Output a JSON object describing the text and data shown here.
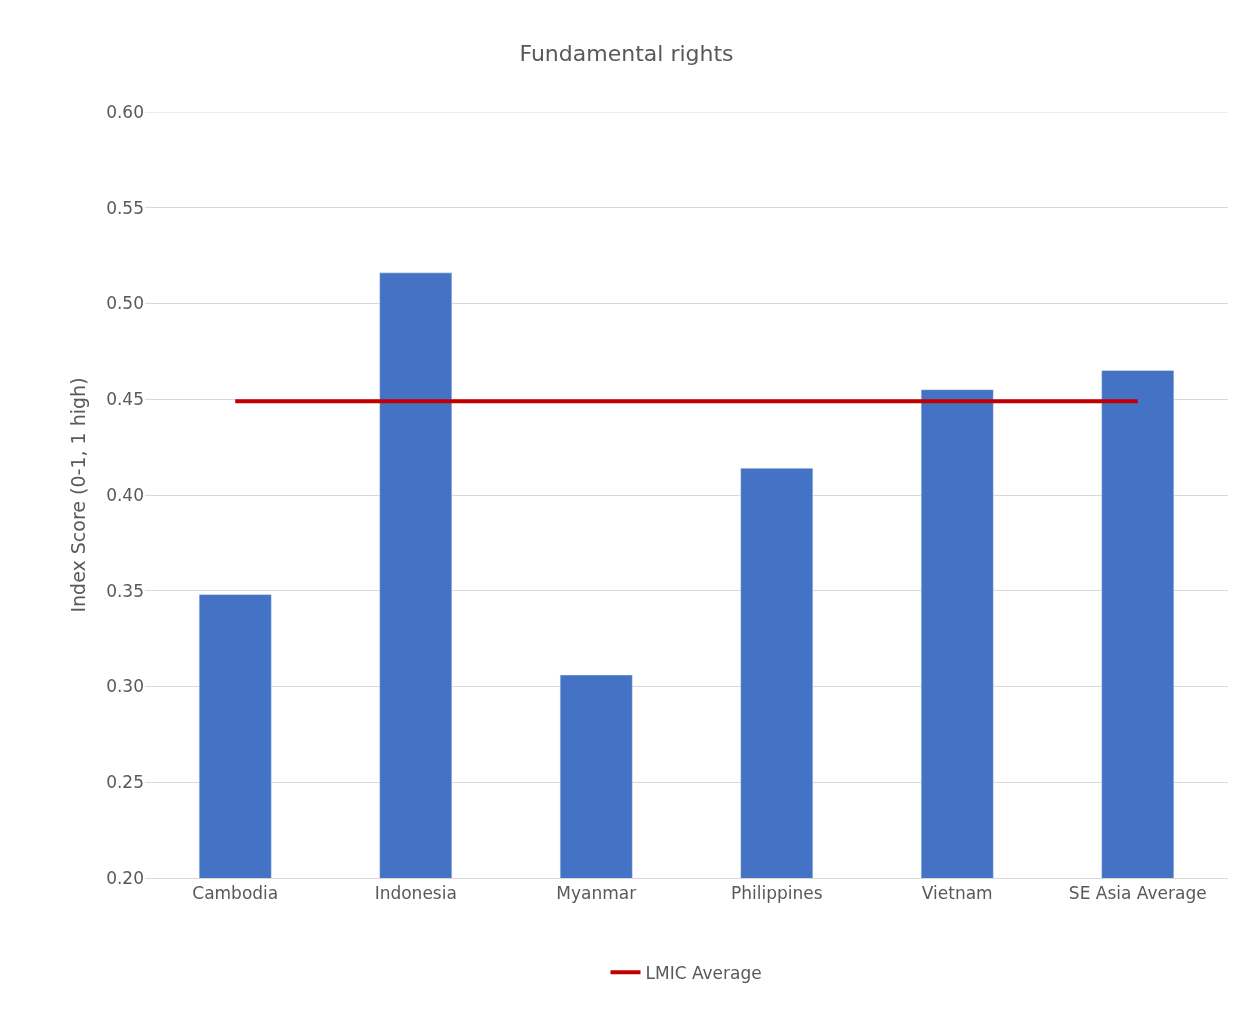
{
  "chart_data": {
    "type": "bar",
    "title": "Fundamental rights",
    "ylabel": "Index Score (0-1, 1 high)",
    "categories": [
      "Cambodia",
      "Indonesia",
      "Myanmar",
      "Philippines",
      "Vietnam",
      "SE Asia Average"
    ],
    "series": [
      {
        "color": "#4472c4",
        "values": [
          0.348,
          0.516,
          0.306,
          0.414,
          0.455,
          0.465
        ]
      },
      {
        "type": "line",
        "name": "LMIC Average",
        "color": "#c00000",
        "values": [
          0.449,
          0.449,
          0.449,
          0.449,
          0.449,
          0.449
        ],
        "marker": "none",
        "line_style": "solid"
      }
    ],
    "ylim": [
      0.2,
      0.6
    ],
    "yticks": [
      {
        "value": 0.2,
        "label": "0.20"
      },
      {
        "value": 0.25,
        "label": "0.25"
      },
      {
        "value": 0.3,
        "label": "0.30"
      },
      {
        "value": 0.35,
        "label": "0.35"
      },
      {
        "value": 0.4,
        "label": "0.40"
      },
      {
        "value": 0.45,
        "label": "0.45"
      },
      {
        "value": 0.5,
        "label": "0.50"
      },
      {
        "value": 0.55,
        "label": "0.55"
      },
      {
        "value": 0.6,
        "label": "0.60"
      }
    ],
    "grid": "y",
    "legend": "bottom"
  }
}
